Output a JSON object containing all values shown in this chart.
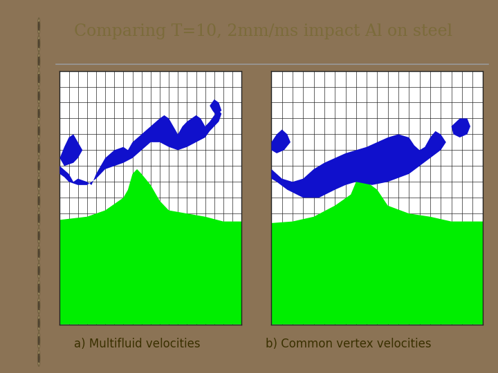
{
  "title": "Comparing T=10, 2mm/ms impact Al on steel",
  "title_color": "#7B6B3A",
  "title_fontsize": 17,
  "label_a": "a) Multifluid velocities",
  "label_b": "b) Common vertex velocities",
  "label_fontsize": 12,
  "label_color": "#3A3000",
  "bg_outer": "#8B7355",
  "bg_notebook": "#F0EDD0",
  "bg_panel": "#FFFFFF",
  "grid_color": "#222222",
  "grid_linewidth": 0.5,
  "grid_cols": 20,
  "grid_rows": 16,
  "blue_color": "#1010CC",
  "green_color": "#00EE00",
  "separator_color": "#999999"
}
